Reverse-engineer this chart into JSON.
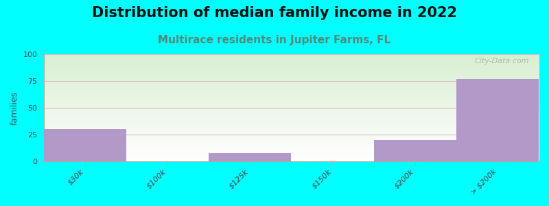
{
  "title": "Distribution of median family income in 2022",
  "subtitle": "Multirace residents in Jupiter Farms, FL",
  "ylabel": "families",
  "background_color": "#00FFFF",
  "plot_bg_top": "#ffffff",
  "plot_bg_bottom": "#d8efd0",
  "bar_color": "#b399c8",
  "categories": [
    "$30k",
    "$100k",
    "$125k",
    "$150k",
    "$200k",
    "> $200k"
  ],
  "values": [
    30,
    0,
    8,
    0,
    20,
    77
  ],
  "bar_positions": [
    0,
    1,
    2,
    3,
    4,
    5
  ],
  "ylim": [
    0,
    100
  ],
  "yticks": [
    0,
    25,
    50,
    75,
    100
  ],
  "grid_color": "#ddbbcc",
  "title_fontsize": 15,
  "title_color": "#111111",
  "subtitle_fontsize": 11,
  "subtitle_color": "#558877",
  "ylabel_fontsize": 9,
  "tick_label_fontsize": 8,
  "watermark": "City-Data.com",
  "watermark_color": "#aaaaaa"
}
